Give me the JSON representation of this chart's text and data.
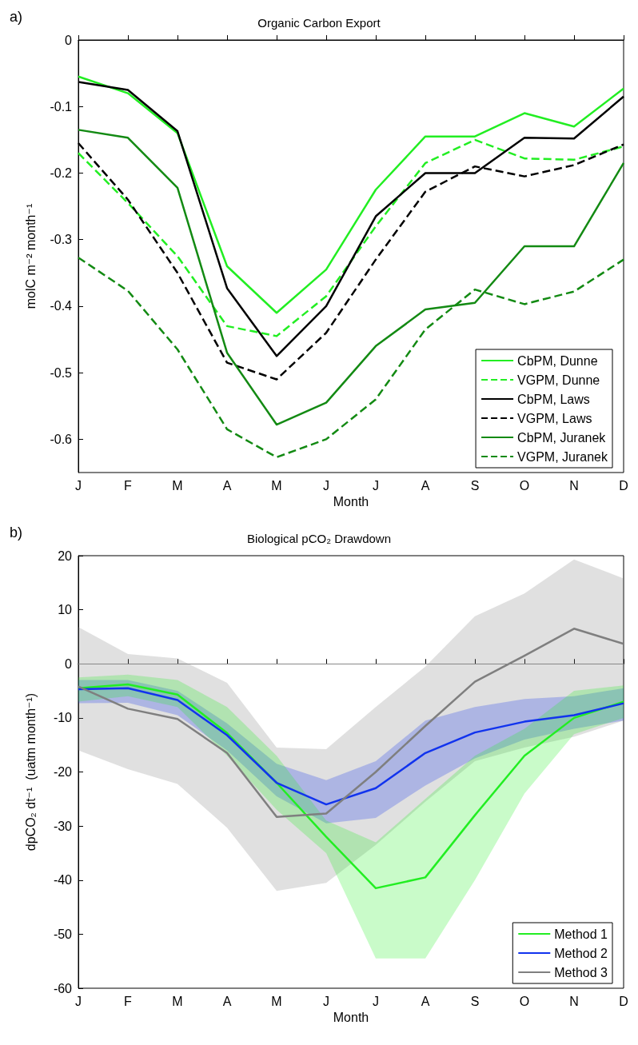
{
  "chart_data": [
    {
      "type": "line",
      "title": "Organic Carbon Export",
      "xlabel": "Month",
      "ylabel": "molC m⁻² month⁻¹",
      "annotations": [
        "a)"
      ],
      "categories": [
        "J",
        "F",
        "M",
        "A",
        "M",
        "J",
        "J",
        "A",
        "S",
        "O",
        "N",
        "D"
      ],
      "ylim": [
        -0.65,
        0
      ],
      "yticks": [
        -0.6,
        -0.5,
        -0.4,
        -0.3,
        -0.2,
        -0.1,
        0
      ],
      "grid": false,
      "legend": "bottom right",
      "marker": "none",
      "series": [
        {
          "name": "CbPM, Dunne",
          "color": "#22ee22",
          "line_style": "solid",
          "values": [
            -0.055,
            -0.08,
            -0.14,
            -0.34,
            -0.41,
            -0.345,
            -0.225,
            -0.145,
            -0.145,
            -0.11,
            -0.13,
            -0.073
          ]
        },
        {
          "name": "VGPM, Dunne",
          "color": "#22ee22",
          "line_style": "dashed",
          "values": [
            -0.17,
            -0.245,
            -0.325,
            -0.43,
            -0.445,
            -0.385,
            -0.28,
            -0.185,
            -0.15,
            -0.178,
            -0.18,
            -0.16
          ]
        },
        {
          "name": "CbPM, Laws",
          "color": "#000000",
          "line_style": "solid",
          "values": [
            -0.063,
            -0.075,
            -0.137,
            -0.373,
            -0.475,
            -0.4,
            -0.265,
            -0.2,
            -0.2,
            -0.147,
            -0.148,
            -0.085
          ]
        },
        {
          "name": "VGPM, Laws",
          "color": "#000000",
          "line_style": "dashed",
          "values": [
            -0.155,
            -0.24,
            -0.35,
            -0.485,
            -0.51,
            -0.44,
            -0.33,
            -0.228,
            -0.19,
            -0.205,
            -0.188,
            -0.157
          ]
        },
        {
          "name": "CbPM, Juranek",
          "color": "#138a13",
          "line_style": "solid",
          "values": [
            -0.135,
            -0.147,
            -0.222,
            -0.47,
            -0.578,
            -0.545,
            -0.46,
            -0.405,
            -0.395,
            -0.31,
            -0.31,
            -0.185
          ]
        },
        {
          "name": "VGPM, Juranek",
          "color": "#138a13",
          "line_style": "dashed",
          "values": [
            -0.327,
            -0.377,
            -0.465,
            -0.585,
            -0.627,
            -0.6,
            -0.54,
            -0.435,
            -0.375,
            -0.397,
            -0.378,
            -0.33
          ]
        }
      ]
    },
    {
      "type": "line",
      "title": "Biological pCO₂ Drawdown",
      "xlabel": "Month",
      "ylabel": "dpCO₂ dt⁻¹  (uatm month⁻¹)",
      "annotations": [
        "b)"
      ],
      "categories": [
        "J",
        "F",
        "M",
        "A",
        "M",
        "J",
        "J",
        "A",
        "S",
        "O",
        "N",
        "D"
      ],
      "ylim": [
        -60,
        20
      ],
      "yticks": [
        -60,
        -50,
        -40,
        -30,
        -20,
        -10,
        0,
        10,
        20
      ],
      "grid": false,
      "legend": "bottom right",
      "marker": "none",
      "ref_lines": [
        {
          "axis": "y",
          "value": 0,
          "color": "#888888"
        }
      ],
      "series": [
        {
          "name": "Method 1",
          "color": "#22ee22",
          "line_style": "solid",
          "values": [
            -4.5,
            -3.8,
            -5.7,
            -12.8,
            -22,
            -32,
            -41.5,
            -39.5,
            -28,
            -17,
            -10,
            -7
          ],
          "lower": [
            -7,
            -6,
            -8,
            -17,
            -27,
            -35,
            -54.5,
            -54.5,
            -40,
            -24,
            -13,
            -10
          ],
          "upper": [
            -2.5,
            -2,
            -3,
            -8,
            -17,
            -29,
            -33,
            -25,
            -17,
            -12,
            -5,
            -4
          ]
        },
        {
          "name": "Method 2",
          "color": "#1133ee",
          "line_style": "solid",
          "values": [
            -4.7,
            -4.5,
            -6.7,
            -13.2,
            -22,
            -26,
            -23,
            -16.5,
            -12.7,
            -10.7,
            -9.5,
            -7.3
          ],
          "lower": [
            -7.3,
            -7.2,
            -9.5,
            -16,
            -24.5,
            -29.5,
            -28.5,
            -22.5,
            -17.5,
            -14,
            -12,
            -10.5
          ],
          "upper": [
            -3,
            -3,
            -5,
            -11,
            -18.5,
            -21.5,
            -18,
            -10.5,
            -8,
            -6.5,
            -6,
            -4.5
          ]
        },
        {
          "name": "Method 3",
          "color": "#7f7f7f",
          "line_style": "solid",
          "values": [
            -4.2,
            -8.3,
            -10.2,
            -16.5,
            -28.3,
            -27.7,
            -20,
            -11.5,
            -3.3,
            1.5,
            6.5,
            3.7
          ],
          "lower": [
            -16,
            -19.5,
            -22.2,
            -30.3,
            -42,
            -40.5,
            -33.5,
            -25.5,
            -18,
            -15.5,
            -13.5,
            -10.5
          ],
          "upper": [
            6.8,
            1.8,
            1,
            -3.5,
            -15.5,
            -15.8,
            -8,
            -0.5,
            8.8,
            13,
            19.3,
            15.8
          ]
        }
      ]
    }
  ]
}
